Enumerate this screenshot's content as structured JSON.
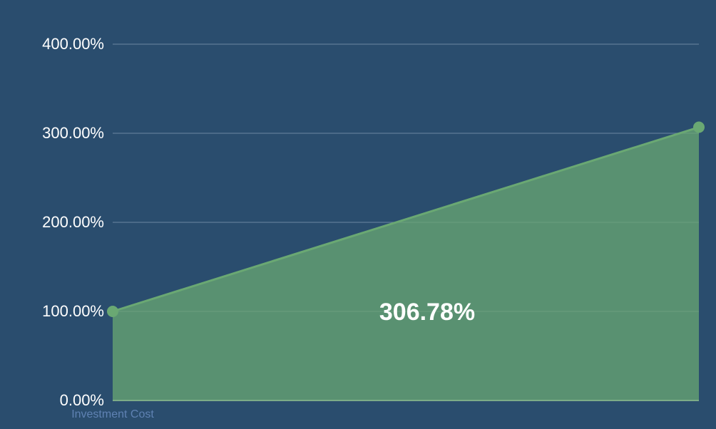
{
  "chart_data": {
    "type": "area",
    "categories": [
      "Investment Cost",
      null
    ],
    "series": [
      {
        "color": "#6aa873",
        "values": [
          100,
          306.78
        ]
      }
    ],
    "annotation": "306.78%",
    "ylim": [
      0,
      400
    ],
    "yticks": [
      {
        "value": 0,
        "label": "0.00%"
      },
      {
        "value": 100,
        "label": "100.00%"
      },
      {
        "value": 200,
        "label": "200.00%"
      },
      {
        "value": 300,
        "label": "300.00%"
      },
      {
        "value": 400,
        "label": "400.00%"
      }
    ],
    "grid": true
  }
}
